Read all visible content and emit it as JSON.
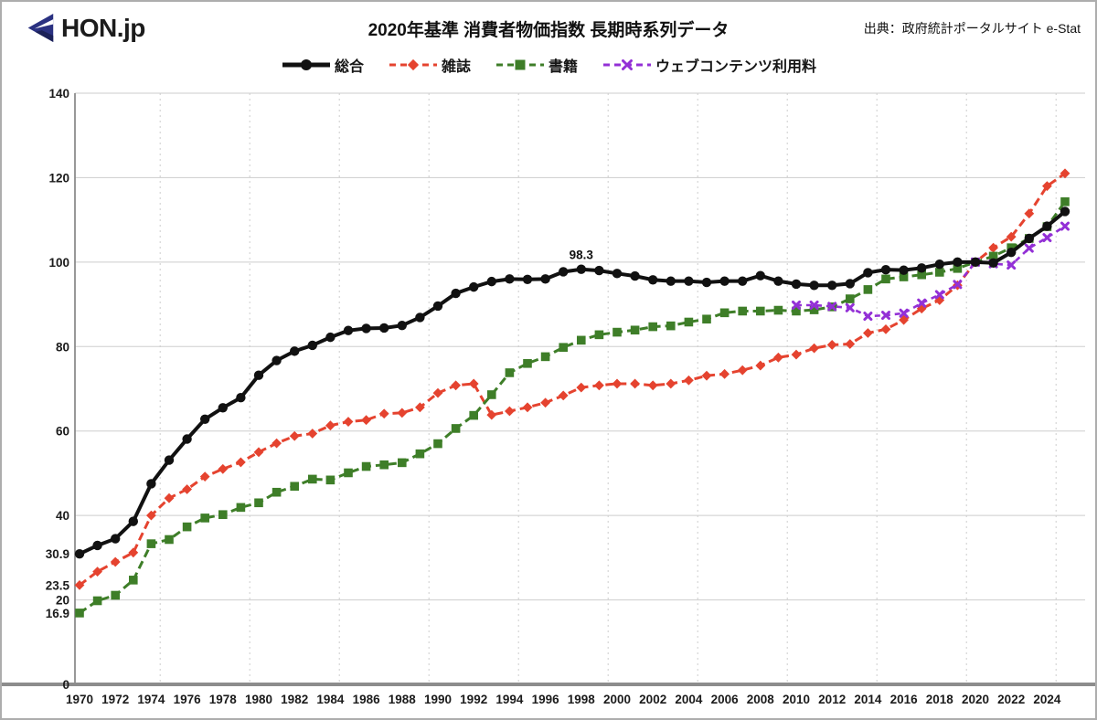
{
  "header": {
    "logo_text": "HON.jp",
    "title": "2020年基準  消費者物価指数  長期時系列データ",
    "source": "出典：政府統計ポータルサイト  e-Stat"
  },
  "colors": {
    "sogo": "#111111",
    "zasshi": "#e5432f",
    "shoseki": "#3e7e28",
    "web": "#9330d6",
    "grid": "#cdcdcd",
    "axis": "#8c8c8c",
    "logo_navy": "#2a3181"
  },
  "chart_data": {
    "type": "line",
    "title": "2020年基準  消費者物価指数  長期時系列データ",
    "xlabel": "",
    "ylabel": "",
    "ylim": [
      0,
      140
    ],
    "x_range": [
      1970,
      2025
    ],
    "x_ticks": [
      1970,
      1972,
      1974,
      1976,
      1978,
      1980,
      1982,
      1984,
      1986,
      1988,
      1990,
      1992,
      1994,
      1996,
      1998,
      2000,
      2002,
      2004,
      2006,
      2008,
      2010,
      2012,
      2014,
      2016,
      2018,
      2020,
      2022,
      2024
    ],
    "x_gridlines": [
      1974.5,
      1979.5,
      1984.5,
      1989.5,
      1994.5,
      1999.5,
      2004.5,
      2009.5,
      2014.5,
      2019.5,
      2024.5
    ],
    "y_ticks": [
      {
        "v": 0,
        "label": "0"
      },
      {
        "v": 20,
        "label": "20"
      },
      {
        "v": 40,
        "label": "40"
      },
      {
        "v": 60,
        "label": "60"
      },
      {
        "v": 80,
        "label": "80"
      },
      {
        "v": 100,
        "label": "100"
      },
      {
        "v": 120,
        "label": "120"
      },
      {
        "v": 140,
        "label": "140"
      }
    ],
    "extra_y_labels": [
      {
        "v": 30.9,
        "label": "30.9"
      },
      {
        "v": 23.5,
        "label": "23.5"
      },
      {
        "v": 16.9,
        "label": "16.9"
      }
    ],
    "annotation": {
      "year": 1998,
      "value": 98.3,
      "label": "98.3"
    },
    "legend_position": "top",
    "grid": true,
    "series": [
      {
        "name": "雑誌",
        "color": "#e5432f",
        "marker": "diamond",
        "line": "dashed",
        "start_year": 1970,
        "values": [
          23.5,
          26.7,
          29.0,
          31.2,
          40.0,
          44.1,
          46.2,
          49.2,
          51.0,
          52.6,
          55.0,
          57.1,
          58.8,
          59.4,
          61.3,
          62.2,
          62.6,
          64.1,
          64.3,
          65.6,
          69.0,
          70.8,
          71.2,
          63.8,
          64.7,
          65.6,
          66.7,
          68.4,
          70.3,
          70.8,
          71.2,
          71.2,
          70.8,
          71.2,
          72.0,
          73.1,
          73.5,
          74.4,
          75.5,
          77.4,
          78.1,
          79.6,
          80.4,
          80.6,
          83.2,
          84.1,
          86.3,
          89.0,
          91.0,
          94.5,
          100.0,
          103.4,
          106.0,
          111.5,
          118.0,
          121.0
        ]
      },
      {
        "name": "書籍",
        "color": "#3e7e28",
        "marker": "square",
        "line": "dashed",
        "start_year": 1970,
        "values": [
          16.9,
          19.8,
          21.1,
          24.7,
          33.3,
          34.3,
          37.3,
          39.4,
          40.2,
          41.9,
          43.0,
          45.5,
          46.9,
          48.6,
          48.4,
          50.1,
          51.6,
          52.0,
          52.5,
          54.6,
          57.0,
          60.6,
          63.7,
          68.6,
          73.8,
          76.0,
          77.6,
          79.8,
          81.5,
          82.8,
          83.4,
          83.9,
          84.7,
          84.9,
          85.8,
          86.5,
          88.0,
          88.4,
          88.4,
          88.6,
          88.4,
          88.7,
          89.4,
          91.3,
          93.5,
          96.0,
          96.5,
          97.0,
          97.6,
          98.5,
          100.0,
          101.4,
          103.4,
          105.6,
          108.4,
          114.3
        ]
      },
      {
        "name": "ウェブコンテンツ利用料",
        "color": "#9330d6",
        "marker": "x",
        "line": "dashed",
        "start_year": 2010,
        "values": [
          89.8,
          89.8,
          89.5,
          89.2,
          87.2,
          87.4,
          87.9,
          90.3,
          92.3,
          94.7,
          100.0,
          99.6,
          99.3,
          103.3,
          105.8,
          108.5
        ]
      },
      {
        "name": "総合",
        "color": "#111111",
        "marker": "circle",
        "line": "solid",
        "start_year": 1970,
        "values": [
          30.9,
          32.9,
          34.5,
          38.6,
          47.5,
          53.1,
          58.1,
          62.8,
          65.5,
          67.9,
          73.2,
          76.7,
          78.9,
          80.3,
          82.2,
          83.8,
          84.3,
          84.4,
          85.0,
          86.9,
          89.6,
          92.6,
          94.1,
          95.4,
          96.0,
          95.9,
          96.0,
          97.7,
          98.3,
          98.0,
          97.3,
          96.7,
          95.8,
          95.5,
          95.5,
          95.2,
          95.5,
          95.5,
          96.8,
          95.5,
          94.8,
          94.5,
          94.5,
          94.9,
          97.5,
          98.2,
          98.1,
          98.6,
          99.5,
          100.0,
          100.0,
          99.8,
          102.3,
          105.6,
          108.5,
          112.0
        ]
      }
    ],
    "legend_order": [
      3,
      0,
      1,
      2
    ]
  }
}
